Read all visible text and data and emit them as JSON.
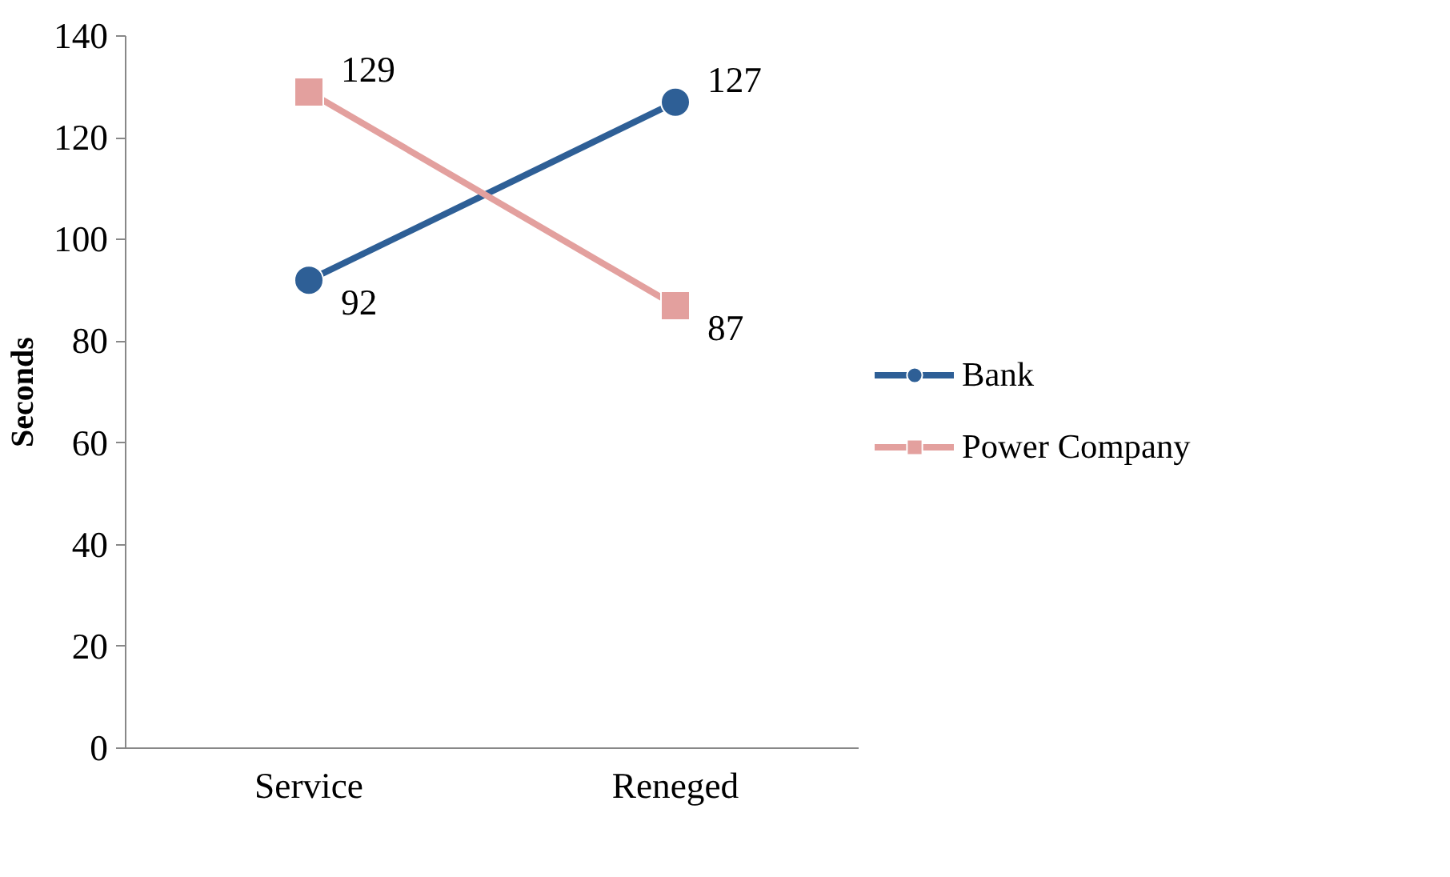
{
  "chart_data": {
    "type": "line",
    "ylabel": "Seconds",
    "categories": [
      "Service",
      "Reneged"
    ],
    "series": [
      {
        "name": "Bank",
        "color": "#2e5f96",
        "marker": "circle",
        "values": [
          92,
          127
        ]
      },
      {
        "name": "Power Company",
        "color": "#e3a09e",
        "marker": "square",
        "values": [
          129,
          87
        ]
      }
    ],
    "ylim": [
      0,
      140
    ],
    "yticks": [
      0,
      20,
      40,
      60,
      80,
      100,
      120,
      140
    ],
    "grid": false,
    "legend": "right",
    "data_labels": true
  }
}
